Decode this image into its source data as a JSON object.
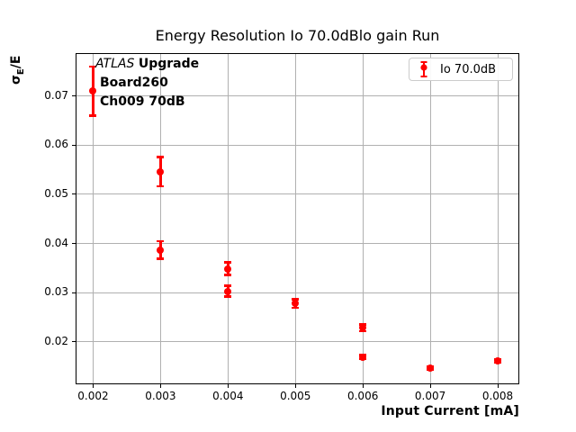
{
  "title": "Energy Resolution Io 70.0dBlo gain Run",
  "annotation": {
    "atlas": "ATLAS",
    "upgrade": "Upgrade",
    "line2": "Board260",
    "line3": "Ch009 70dB"
  },
  "legend": {
    "label": "Io 70.0dB"
  },
  "colors": {
    "series": "#ff0000",
    "grid": "#b0b0b0",
    "frame": "#000000",
    "legend_border": "#cccccc",
    "text": "#000000"
  },
  "chart_data": {
    "type": "scatter",
    "title": "Energy Resolution Io 70.0dBlo gain Run",
    "xlabel": "Input Current [mA]",
    "ylabel": "σE/E",
    "ylabel_parts": {
      "sigma": "σ",
      "sub": "E",
      "rest": "/E"
    },
    "grid": true,
    "legend_position": "upper right",
    "xlim": [
      0.00174,
      0.00832
    ],
    "ylim": [
      0.0114,
      0.0787
    ],
    "xticks": [
      0.002,
      0.003,
      0.004,
      0.005,
      0.006,
      0.007,
      0.008
    ],
    "xtick_labels": [
      "0.002",
      "0.003",
      "0.004",
      "0.005",
      "0.006",
      "0.007",
      "0.008"
    ],
    "yticks": [
      0.02,
      0.03,
      0.04,
      0.05,
      0.06,
      0.07
    ],
    "ytick_labels": [
      "0.02",
      "0.03",
      "0.04",
      "0.05",
      "0.06",
      "0.07"
    ],
    "series": [
      {
        "name": "Io 70.0dB",
        "color": "#ff0000",
        "marker": "circle",
        "points": [
          {
            "x": 0.002,
            "y": 0.071,
            "yerr": 0.005
          },
          {
            "x": 0.003,
            "y": 0.0546,
            "yerr": 0.003
          },
          {
            "x": 0.003,
            "y": 0.0387,
            "yerr": 0.0018
          },
          {
            "x": 0.004,
            "y": 0.0349,
            "yerr": 0.0013
          },
          {
            "x": 0.004,
            "y": 0.0303,
            "yerr": 0.0011
          },
          {
            "x": 0.005,
            "y": 0.0278,
            "yerr": 0.0009
          },
          {
            "x": 0.006,
            "y": 0.0229,
            "yerr": 0.0007
          },
          {
            "x": 0.006,
            "y": 0.0169,
            "yerr": 0.0004
          },
          {
            "x": 0.007,
            "y": 0.0147,
            "yerr": 0.0003
          },
          {
            "x": 0.008,
            "y": 0.0161,
            "yerr": 0.0003
          }
        ]
      }
    ]
  }
}
